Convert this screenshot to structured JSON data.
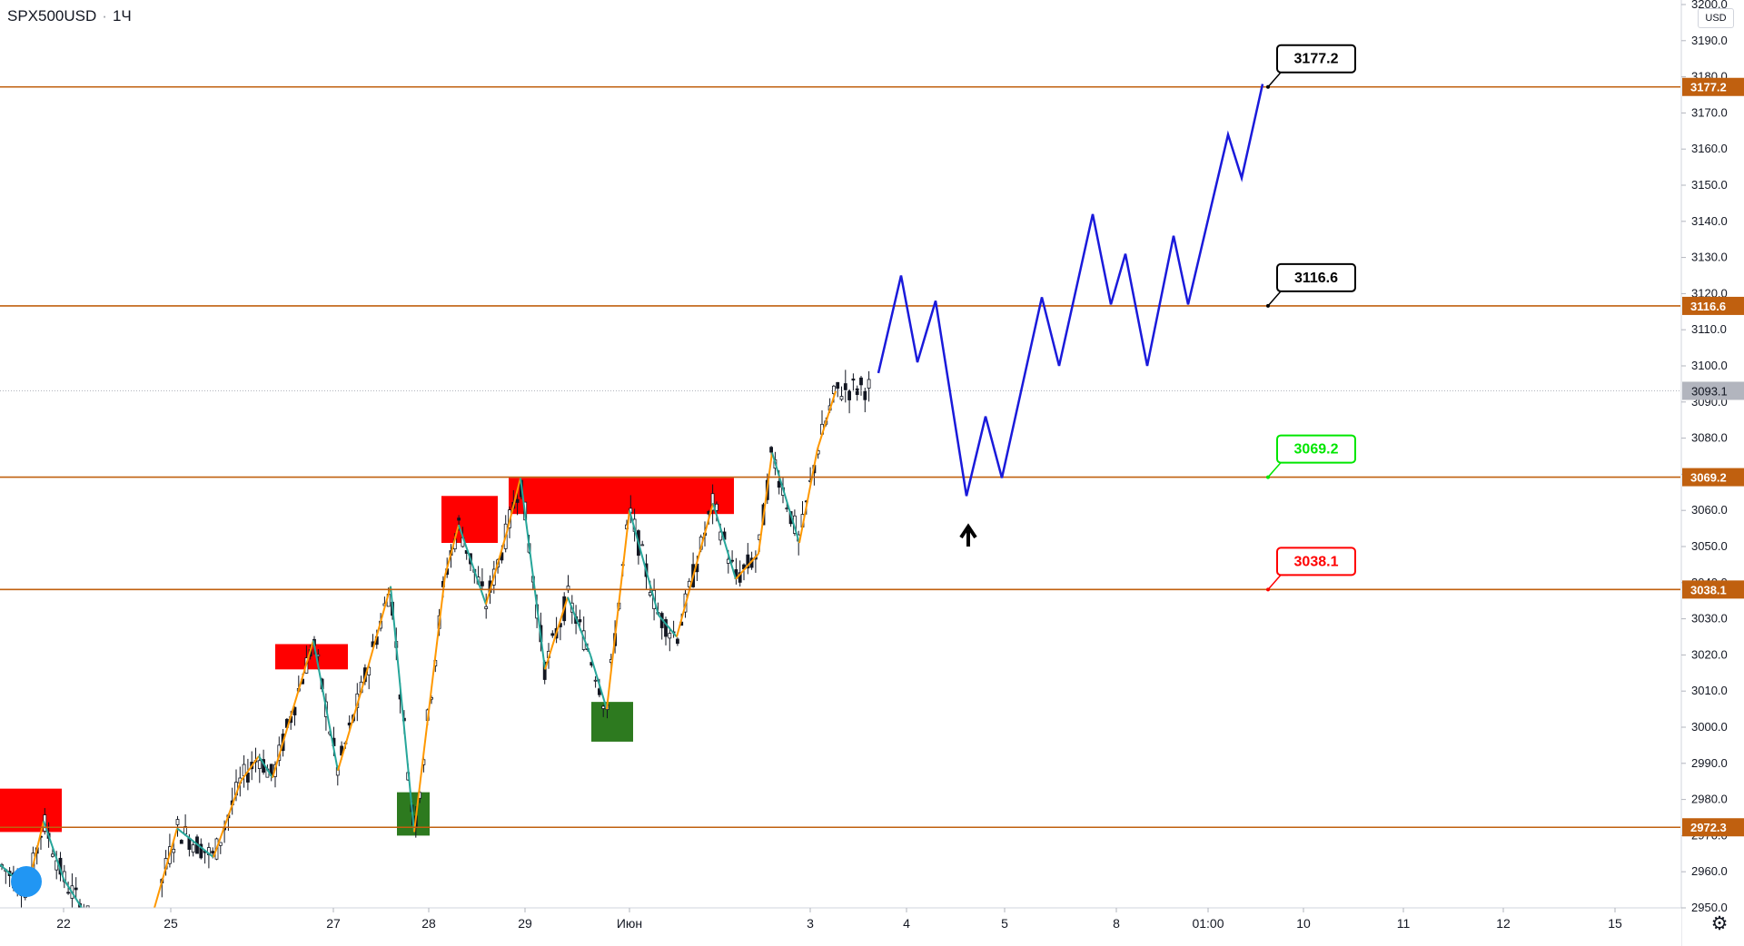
{
  "header": {
    "symbol": "SPX500USD",
    "interval": "1Ч"
  },
  "price_axis": {
    "currency": "USD",
    "ticks": [
      2950.0,
      2960.0,
      2970.0,
      2980.0,
      2990.0,
      3000.0,
      3010.0,
      3020.0,
      3030.0,
      3040.0,
      3050.0,
      3060.0,
      3070.0,
      3080.0,
      3090.0,
      3100.0,
      3110.0,
      3120.0,
      3130.0,
      3140.0,
      3150.0,
      3160.0,
      3170.0,
      3180.0,
      3190.0,
      3200.0
    ],
    "current_price": 3093.1
  },
  "time_axis": {
    "labels": [
      "22",
      "25",
      "27",
      "28",
      "29",
      "Июн",
      "3",
      "4",
      "5",
      "8",
      "01:00",
      "10",
      "11",
      "12",
      "15"
    ]
  },
  "chart_data": {
    "type": "line",
    "title": "SPX500USD · 1Ч",
    "ylim": [
      2950,
      3200
    ],
    "levels": [
      {
        "value": 3177.2,
        "label": "3177.2",
        "color": "#000000"
      },
      {
        "value": 3116.6,
        "label": "3116.6",
        "color": "#000000"
      },
      {
        "value": 3069.2,
        "label": "3069.2",
        "color": "#00e600"
      },
      {
        "value": 3038.1,
        "label": "3038.1",
        "color": "#ff0000"
      },
      {
        "value": 2972.3,
        "label": "2972.3",
        "color": "#000000"
      }
    ],
    "level_line_color": "#c0600f",
    "supply_zone_color": "#ff0000",
    "demand_zone_color": "#2d7a1f",
    "wave_colors": {
      "up": "#ff9800",
      "down": "#26a69a",
      "projection": "#1a1adb"
    },
    "candle_color": "#131722",
    "current_price_line_color": "#b2b5be",
    "projection_arrow": "up-arrow"
  }
}
